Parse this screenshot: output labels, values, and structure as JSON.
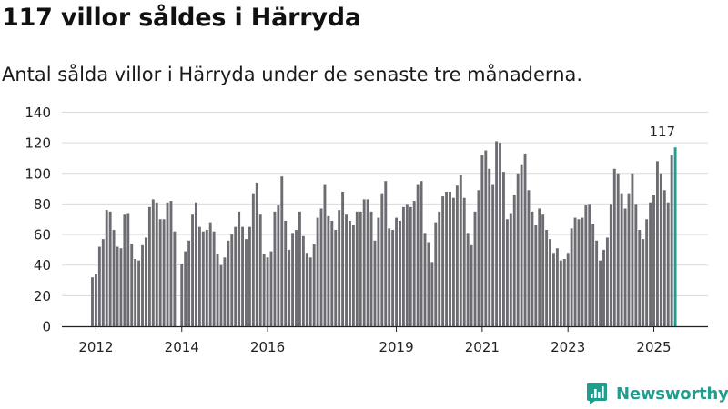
{
  "header": {
    "title": "117 villor såldes i Härryda",
    "subtitle": "Antal sålda villor i Härryda under de senaste tre månaderna."
  },
  "brand": {
    "name": "Newsworthy",
    "icon": "chart-bubble-icon",
    "color": "#1f9d8e"
  },
  "colors": {
    "bar": "#6d6c72",
    "highlight": "#1f9d8e",
    "grid": "#d9d9d9",
    "axis": "#222222"
  },
  "chart_data": {
    "type": "bar",
    "title": "117 villor såldes i Härryda",
    "subtitle": "Antal sålda villor i Härryda under de senaste tre månaderna.",
    "xlabel": "",
    "ylabel": "",
    "ylim": [
      0,
      140
    ],
    "yticks": [
      0,
      20,
      40,
      60,
      80,
      100,
      120,
      140
    ],
    "grid": true,
    "x_start": "2011-12",
    "x_end": "2025-09",
    "xticks": [
      {
        "label": "2012",
        "date": "2012-01"
      },
      {
        "label": "2014",
        "date": "2014-01"
      },
      {
        "label": "2016",
        "date": "2016-01"
      },
      {
        "label": "2019",
        "date": "2019-01"
      },
      {
        "label": "2021",
        "date": "2021-01"
      },
      {
        "label": "2023",
        "date": "2023-01"
      },
      {
        "label": "2025",
        "date": "2025-01"
      }
    ],
    "highlight_label": "117",
    "series": [
      {
        "values": [
          32,
          34,
          52,
          57,
          76,
          75,
          63,
          52,
          51,
          73,
          74,
          54,
          44,
          43,
          53,
          58,
          78,
          83,
          81,
          70,
          70,
          81,
          82,
          62,
          0,
          41,
          49,
          56,
          73,
          81,
          65,
          62,
          63,
          68,
          62,
          47,
          40,
          45,
          56,
          60,
          65,
          75,
          65,
          57,
          65,
          87,
          94,
          73,
          47,
          45,
          49,
          75,
          79,
          98,
          69,
          50,
          61,
          63,
          75,
          59,
          48,
          45,
          54,
          71,
          77,
          93,
          72,
          69,
          63,
          76,
          88,
          73,
          69,
          66,
          75,
          75,
          83,
          83,
          75,
          56,
          71,
          87,
          95,
          64,
          63,
          71,
          69,
          78,
          80,
          78,
          82,
          93,
          95,
          61,
          55,
          42,
          68,
          75,
          85,
          88,
          88,
          84,
          92,
          99,
          84,
          61,
          53,
          75,
          89,
          112,
          115,
          103,
          93,
          121,
          120,
          101,
          70,
          74,
          86,
          100,
          106,
          113,
          89,
          75,
          66,
          77,
          73,
          63,
          57,
          48,
          51,
          43,
          44,
          48,
          64,
          71,
          70,
          71,
          79,
          80,
          67,
          56,
          43,
          50,
          58,
          80,
          103,
          100,
          87,
          77,
          87,
          100,
          80,
          63,
          57,
          70,
          81,
          86,
          108,
          100,
          89,
          81,
          112,
          117
        ]
      }
    ]
  }
}
